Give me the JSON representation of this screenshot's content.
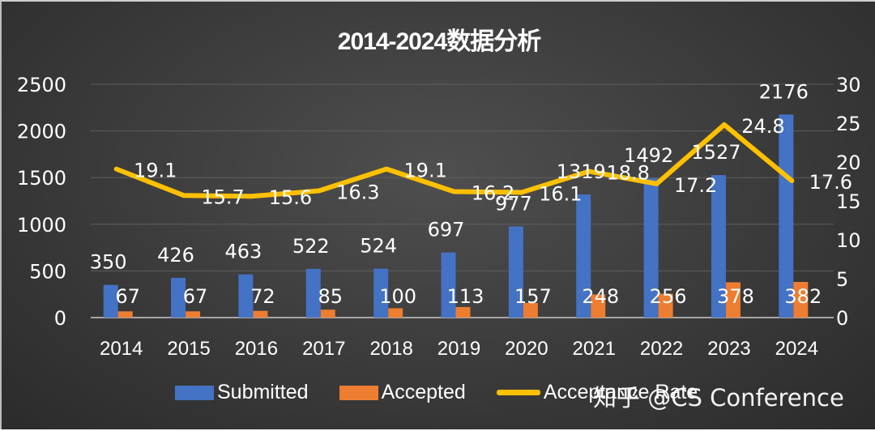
{
  "title": "2014-2024数据分析",
  "watermark": "知乎 @CS Conference",
  "colors": {
    "submitted": "#4472c4",
    "accepted": "#ed7d31",
    "rate": "#ffc000",
    "background": "#3f3f3f",
    "text": "#ffffff",
    "grid": "#5e5e5e"
  },
  "legend": {
    "submitted": "Submitted",
    "accepted": "Accepted",
    "rate": "Acceptance Rate"
  },
  "chart_data": {
    "type": "bar",
    "title": "2014-2024数据分析",
    "xlabel": "",
    "ylabel": "",
    "categories": [
      "2014",
      "2015",
      "2016",
      "2017",
      "2018",
      "2019",
      "2020",
      "2021",
      "2022",
      "2023",
      "2024"
    ],
    "series": [
      {
        "name": "Submitted",
        "type": "bar",
        "axis": "left",
        "values": [
          350,
          426,
          463,
          522,
          524,
          697,
          977,
          1319,
          1492,
          1527,
          2176
        ]
      },
      {
        "name": "Accepted",
        "type": "bar",
        "axis": "left",
        "values": [
          67,
          67,
          72,
          85,
          100,
          113,
          157,
          248,
          256,
          378,
          382
        ]
      },
      {
        "name": "Acceptance Rate",
        "type": "line",
        "axis": "right",
        "values": [
          19.1,
          15.7,
          15.6,
          16.3,
          19.1,
          16.2,
          16.1,
          18.8,
          17.2,
          24.8,
          17.6
        ]
      }
    ],
    "ylim": [
      0,
      2500
    ],
    "yticks": [
      "0",
      "500",
      "1000",
      "1500",
      "2000",
      "2500"
    ],
    "y2lim": [
      0,
      30
    ],
    "y2ticks": [
      "0",
      "5",
      "10",
      "15",
      "20",
      "25",
      "30"
    ],
    "grid": true,
    "legend_position": "bottom"
  }
}
